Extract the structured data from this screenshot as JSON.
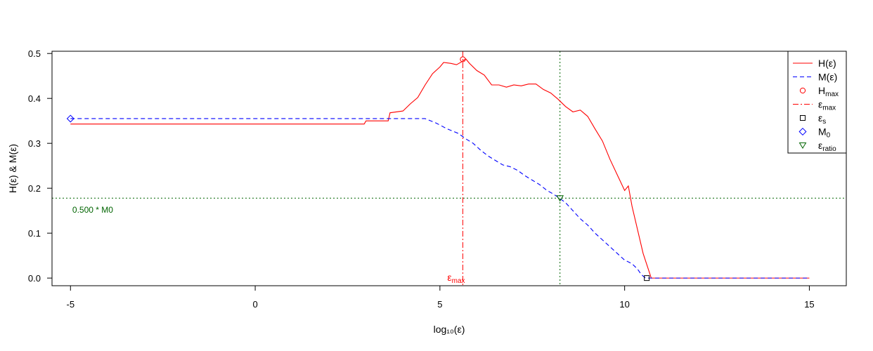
{
  "chart_data": {
    "type": "line",
    "xlabel": "log₁₀(ε)",
    "ylabel": "H(ε) & M(ε)",
    "xlim": [
      -5.5,
      16.0
    ],
    "ylim": [
      -0.017,
      0.505
    ],
    "x_ticks": [
      -5,
      0,
      5,
      10,
      15
    ],
    "y_ticks": [
      0.0,
      0.1,
      0.2,
      0.3,
      0.4,
      0.5
    ],
    "x_tick_labels": [
      "-5",
      "0",
      "5",
      "10",
      "15"
    ],
    "y_tick_labels": [
      "0.0",
      "0.1",
      "0.2",
      "0.3",
      "0.4",
      "0.5"
    ],
    "grid": false,
    "legend_position": "top-right",
    "series": [
      {
        "name": "H(ε)",
        "style": "solid",
        "color": "#ff0000",
        "x": [
          -5.0,
          2.95,
          3.0,
          3.6,
          3.65,
          4.0,
          4.2,
          4.4,
          4.6,
          4.8,
          5.0,
          5.1,
          5.3,
          5.45,
          5.6,
          5.7,
          5.8,
          6.0,
          6.2,
          6.4,
          6.6,
          6.8,
          7.0,
          7.2,
          7.4,
          7.6,
          7.8,
          8.0,
          8.2,
          8.4,
          8.6,
          8.8,
          9.0,
          9.2,
          9.4,
          9.6,
          9.8,
          10.0,
          10.1,
          10.2,
          10.3,
          10.4,
          10.5,
          10.6,
          10.68,
          10.72,
          15.0
        ],
        "y": [
          0.343,
          0.343,
          0.35,
          0.35,
          0.368,
          0.372,
          0.388,
          0.402,
          0.43,
          0.455,
          0.47,
          0.48,
          0.478,
          0.475,
          0.482,
          0.488,
          0.478,
          0.462,
          0.452,
          0.43,
          0.43,
          0.425,
          0.43,
          0.428,
          0.432,
          0.432,
          0.42,
          0.412,
          0.398,
          0.382,
          0.37,
          0.374,
          0.36,
          0.332,
          0.305,
          0.265,
          0.23,
          0.195,
          0.205,
          0.16,
          0.125,
          0.09,
          0.055,
          0.03,
          0.01,
          0.0,
          0.0
        ]
      },
      {
        "name": "M(ε)",
        "style": "dashed",
        "color": "#0000ff",
        "x": [
          -5.0,
          4.6,
          4.9,
          5.2,
          5.5,
          5.7,
          5.9,
          6.1,
          6.3,
          6.5,
          6.7,
          6.9,
          7.1,
          7.3,
          7.5,
          7.7,
          7.9,
          8.05,
          8.2,
          8.4,
          8.6,
          8.8,
          9.0,
          9.2,
          9.4,
          9.6,
          9.8,
          10.0,
          10.2,
          10.35,
          10.45,
          10.55,
          10.65,
          15.0
        ],
        "y": [
          0.355,
          0.355,
          0.345,
          0.332,
          0.322,
          0.31,
          0.3,
          0.285,
          0.272,
          0.262,
          0.252,
          0.248,
          0.24,
          0.228,
          0.218,
          0.208,
          0.195,
          0.188,
          0.18,
          0.168,
          0.15,
          0.132,
          0.118,
          0.1,
          0.085,
          0.07,
          0.055,
          0.04,
          0.032,
          0.02,
          0.008,
          0.001,
          0.0,
          0.0
        ]
      }
    ],
    "points": [
      {
        "name": "H_max",
        "x": 5.62,
        "y": 0.487,
        "shape": "circle",
        "color": "#ff0000"
      },
      {
        "name": "ε_s",
        "x": 10.6,
        "y": 0.0,
        "shape": "square",
        "color": "#000000"
      },
      {
        "name": "M_0",
        "x": -5.0,
        "y": 0.355,
        "shape": "diamond",
        "color": "#0000ff"
      },
      {
        "name": "ε_ratio",
        "x": 8.25,
        "y": 0.178,
        "shape": "triangle-down",
        "color": "#006400"
      }
    ],
    "reference_lines": [
      {
        "name": "ε_max",
        "orientation": "vertical",
        "value": 5.62,
        "style": "dot-dash",
        "color": "#ff0000"
      },
      {
        "name": "ε_ratio",
        "orientation": "vertical",
        "value": 8.25,
        "style": "dotted",
        "color": "#006400"
      },
      {
        "name": "0.500 * M0",
        "orientation": "horizontal",
        "value": 0.178,
        "style": "dotted",
        "color": "#006400"
      }
    ],
    "annotations": [
      {
        "text": "0.500 * M0",
        "x": -4.95,
        "y": 0.152,
        "color": "#006400"
      },
      {
        "text": "ε",
        "sub": "max",
        "x": 5.2,
        "y": 0.0,
        "color": "#ff0000"
      }
    ],
    "legend": [
      {
        "label": "H",
        "sub": "",
        "suffix": "(ε)",
        "symbol": "line-solid",
        "color": "#ff0000"
      },
      {
        "label": "M",
        "sub": "",
        "suffix": "(ε)",
        "symbol": "line-dashed",
        "color": "#0000ff"
      },
      {
        "label": "H",
        "sub": "max",
        "suffix": "",
        "symbol": "circle",
        "color": "#ff0000"
      },
      {
        "label": "ε",
        "sub": "max",
        "suffix": "",
        "symbol": "line-dotdash",
        "color": "#ff0000"
      },
      {
        "label": "ε",
        "sub": "s",
        "suffix": "",
        "symbol": "square",
        "color": "#000000"
      },
      {
        "label": "M",
        "sub": "0",
        "suffix": "",
        "symbol": "diamond",
        "color": "#0000ff"
      },
      {
        "label": "ε",
        "sub": "ratio",
        "suffix": "",
        "symbol": "triangle-down",
        "color": "#006400"
      }
    ]
  }
}
